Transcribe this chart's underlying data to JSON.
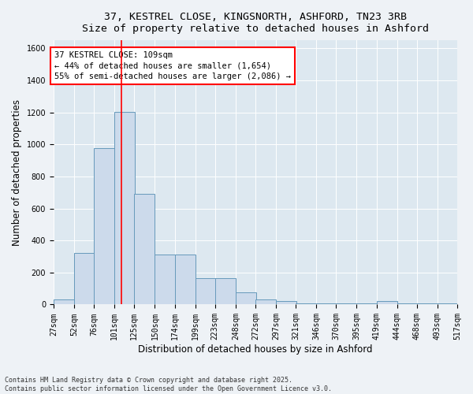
{
  "title_line1": "37, KESTREL CLOSE, KINGSNORTH, ASHFORD, TN23 3RB",
  "title_line2": "Size of property relative to detached houses in Ashford",
  "xlabel": "Distribution of detached houses by size in Ashford",
  "ylabel": "Number of detached properties",
  "bar_color": "#ccdaeb",
  "bar_edge_color": "#6699bb",
  "bg_color": "#dde8f0",
  "annotation_text": "37 KESTREL CLOSE: 109sqm\n← 44% of detached houses are smaller (1,654)\n55% of semi-detached houses are larger (2,086) →",
  "vline_x": 109,
  "vline_color": "red",
  "bins": [
    27,
    52,
    76,
    101,
    125,
    150,
    174,
    199,
    223,
    248,
    272,
    297,
    321,
    346,
    370,
    395,
    419,
    444,
    468,
    493,
    517
  ],
  "counts": [
    30,
    320,
    975,
    1205,
    690,
    310,
    310,
    165,
    165,
    75,
    30,
    20,
    5,
    5,
    5,
    5,
    20,
    5,
    5,
    5
  ],
  "ylim": [
    0,
    1650
  ],
  "yticks": [
    0,
    200,
    400,
    600,
    800,
    1000,
    1200,
    1400,
    1600
  ],
  "footnote": "Contains HM Land Registry data © Crown copyright and database right 2025.\nContains public sector information licensed under the Open Government Licence v3.0.",
  "grid_color": "#ffffff",
  "fig_bg": "#eef2f6",
  "title_fontsize": 9.5,
  "tick_fontsize": 7,
  "label_fontsize": 8.5,
  "annot_fontsize": 7.5
}
